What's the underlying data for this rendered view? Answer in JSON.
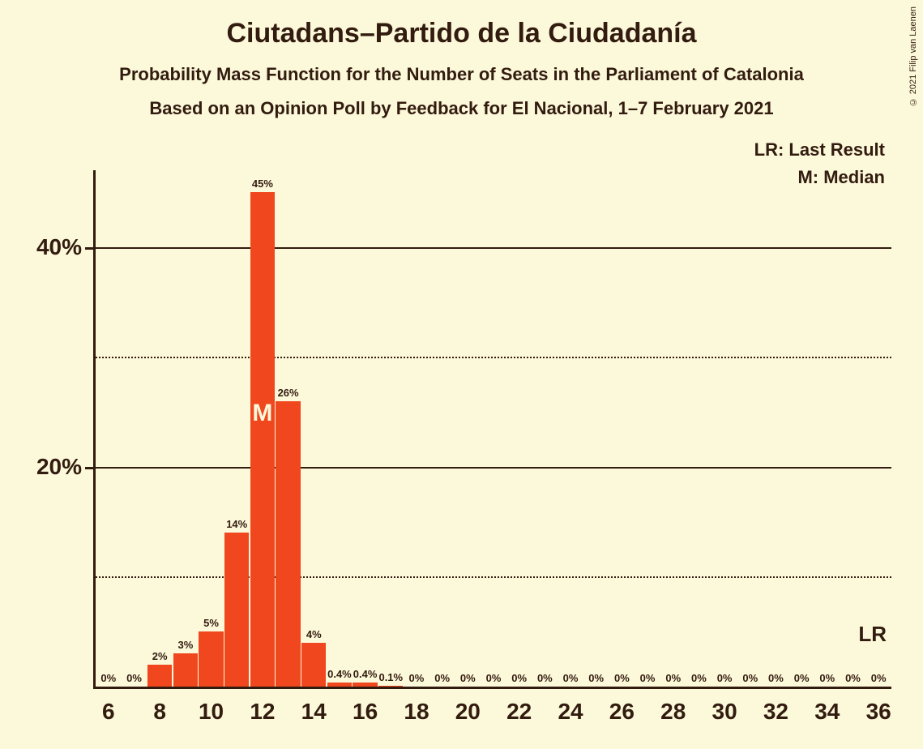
{
  "title": "Ciutadans–Partido de la Ciudadanía",
  "subtitle": "Probability Mass Function for the Number of Seats in the Parliament of Catalonia",
  "subsubtitle": "Based on an Opinion Poll by Feedback for El Nacional, 1–7 February 2021",
  "copyright": "© 2021 Filip van Laenen",
  "legend_lr": "LR: Last Result",
  "legend_m": "M: Median",
  "lr_label": "LR",
  "median_label": "M",
  "chart": {
    "type": "bar",
    "bar_color": "#f0471e",
    "background_color": "#fcf8da",
    "axis_color": "#321b0f",
    "text_color": "#321b0f",
    "grid_solid_color": "#321b0f",
    "grid_dotted_color": "#321b0f",
    "ylim_max": 47,
    "y_ticks_major": [
      20,
      40
    ],
    "y_ticks_minor": [
      10,
      30
    ],
    "x_min": 6,
    "x_max": 36,
    "x_tick_step": 2,
    "median_seat": 12,
    "lr_seat": 36,
    "bars": [
      {
        "seat": 6,
        "value": 0,
        "label": "0%"
      },
      {
        "seat": 7,
        "value": 0,
        "label": "0%"
      },
      {
        "seat": 8,
        "value": 2,
        "label": "2%"
      },
      {
        "seat": 9,
        "value": 3,
        "label": "3%"
      },
      {
        "seat": 10,
        "value": 5,
        "label": "5%"
      },
      {
        "seat": 11,
        "value": 14,
        "label": "14%"
      },
      {
        "seat": 12,
        "value": 45,
        "label": "45%"
      },
      {
        "seat": 13,
        "value": 26,
        "label": "26%"
      },
      {
        "seat": 14,
        "value": 4,
        "label": "4%"
      },
      {
        "seat": 15,
        "value": 0.4,
        "label": "0.4%"
      },
      {
        "seat": 16,
        "value": 0.4,
        "label": "0.4%"
      },
      {
        "seat": 17,
        "value": 0.1,
        "label": "0.1%"
      },
      {
        "seat": 18,
        "value": 0,
        "label": "0%"
      },
      {
        "seat": 19,
        "value": 0,
        "label": "0%"
      },
      {
        "seat": 20,
        "value": 0,
        "label": "0%"
      },
      {
        "seat": 21,
        "value": 0,
        "label": "0%"
      },
      {
        "seat": 22,
        "value": 0,
        "label": "0%"
      },
      {
        "seat": 23,
        "value": 0,
        "label": "0%"
      },
      {
        "seat": 24,
        "value": 0,
        "label": "0%"
      },
      {
        "seat": 25,
        "value": 0,
        "label": "0%"
      },
      {
        "seat": 26,
        "value": 0,
        "label": "0%"
      },
      {
        "seat": 27,
        "value": 0,
        "label": "0%"
      },
      {
        "seat": 28,
        "value": 0,
        "label": "0%"
      },
      {
        "seat": 29,
        "value": 0,
        "label": "0%"
      },
      {
        "seat": 30,
        "value": 0,
        "label": "0%"
      },
      {
        "seat": 31,
        "value": 0,
        "label": "0%"
      },
      {
        "seat": 32,
        "value": 0,
        "label": "0%"
      },
      {
        "seat": 33,
        "value": 0,
        "label": "0%"
      },
      {
        "seat": 34,
        "value": 0,
        "label": "0%"
      },
      {
        "seat": 35,
        "value": 0,
        "label": "0%"
      },
      {
        "seat": 36,
        "value": 0,
        "label": "0%"
      }
    ]
  }
}
